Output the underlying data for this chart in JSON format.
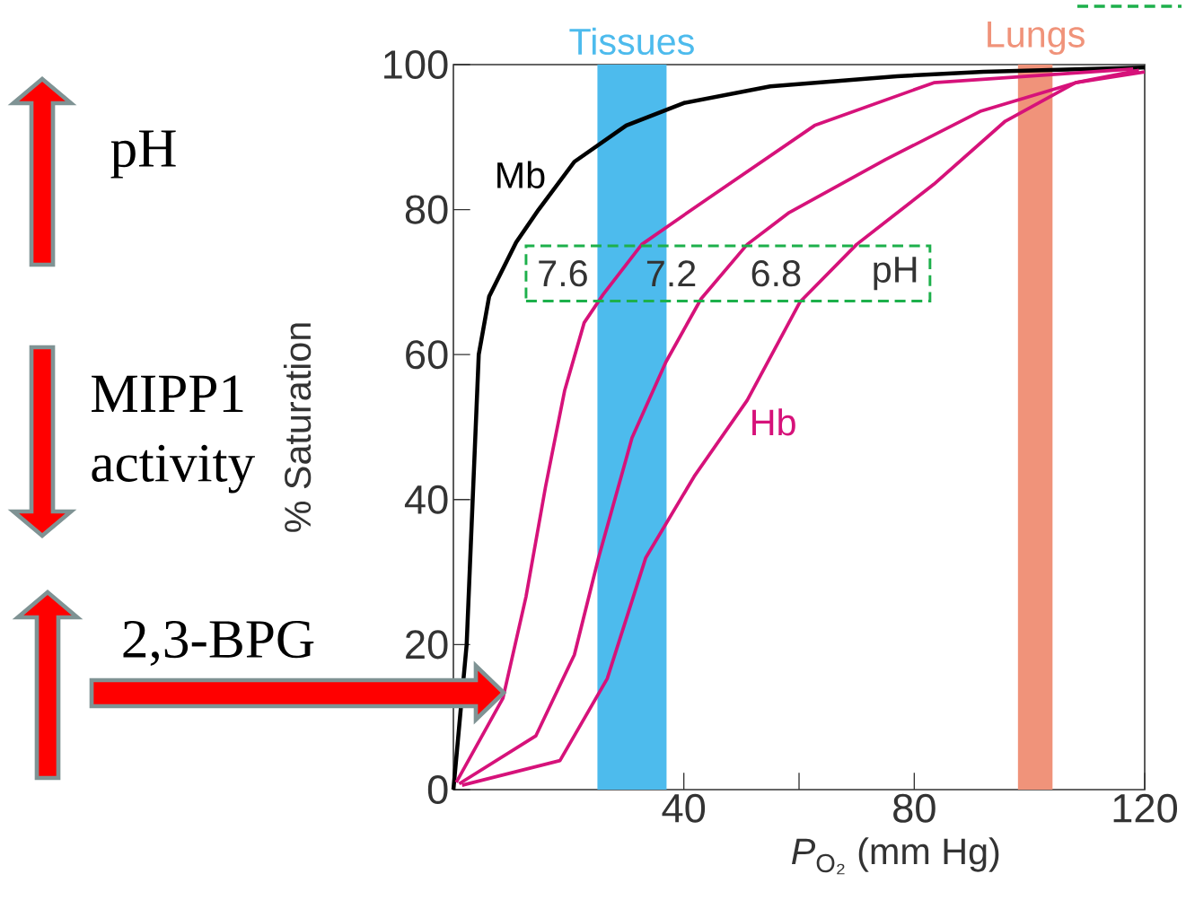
{
  "chart_data": {
    "type": "line",
    "xlabel": "*P*$_{O₂}$  (mm Hg)",
    "ylabel": "% Saturation",
    "xlim": [
      0,
      120
    ],
    "ylim": [
      0,
      100
    ],
    "xticks": [
      40,
      80,
      120
    ],
    "yticks": [
      0,
      20,
      40,
      60,
      80,
      100
    ],
    "series": [
      {
        "color": "#000000",
        "x": [
          0,
          2.3,
          4.4,
          6.2,
          10.9,
          14.8,
          21,
          30,
          40,
          55,
          77,
          92,
          120
        ],
        "values": [
          0,
          20,
          60,
          68,
          75.5,
          80,
          86.6,
          91.6,
          94.7,
          97,
          98.4,
          99,
          99.6
        ]
      },
      {
        "color": "#d6127a",
        "x": [
          0.5,
          8.6,
          12.6,
          16,
          19.3,
          22.7,
          26,
          32.7,
          44.3,
          62.7,
          83.4,
          118
        ],
        "values": [
          1,
          12.6,
          26.6,
          41.8,
          55,
          64.4,
          68.3,
          75.2,
          81.6,
          91.6,
          97.5,
          99.4
        ]
      },
      {
        "color": "#d6127a",
        "x": [
          1,
          14.3,
          21,
          25.2,
          31,
          36.9,
          43,
          51,
          58.3,
          75,
          91.6,
          108,
          119
        ],
        "values": [
          0.8,
          7.4,
          18.6,
          32,
          48.5,
          59,
          67.7,
          75.2,
          79.6,
          86.9,
          93.6,
          97.5,
          99.2
        ]
      },
      {
        "color": "#d6127a",
        "x": [
          1.5,
          18.5,
          26.7,
          33.4,
          41.8,
          51,
          60.2,
          70,
          83.4,
          95.8,
          108,
          120
        ],
        "values": [
          0.6,
          4,
          15.3,
          32,
          43.2,
          53.7,
          67.3,
          75.2,
          83.5,
          92.2,
          97.5,
          99
        ]
      }
    ],
    "bands": [
      {
        "axis": "x",
        "from": 25,
        "to": 37,
        "label": "Tissues",
        "color": "#4dbbed"
      },
      {
        "axis": "x",
        "from": 98,
        "to": 104,
        "label": "Lungs",
        "color": "#f0937a"
      }
    ],
    "annotations": [
      "Mb",
      "Hb",
      "7.6",
      "7.2",
      "6.8",
      "pH",
      "pH",
      "MIPP1 activity",
      "2,3-BPG"
    ]
  }
}
